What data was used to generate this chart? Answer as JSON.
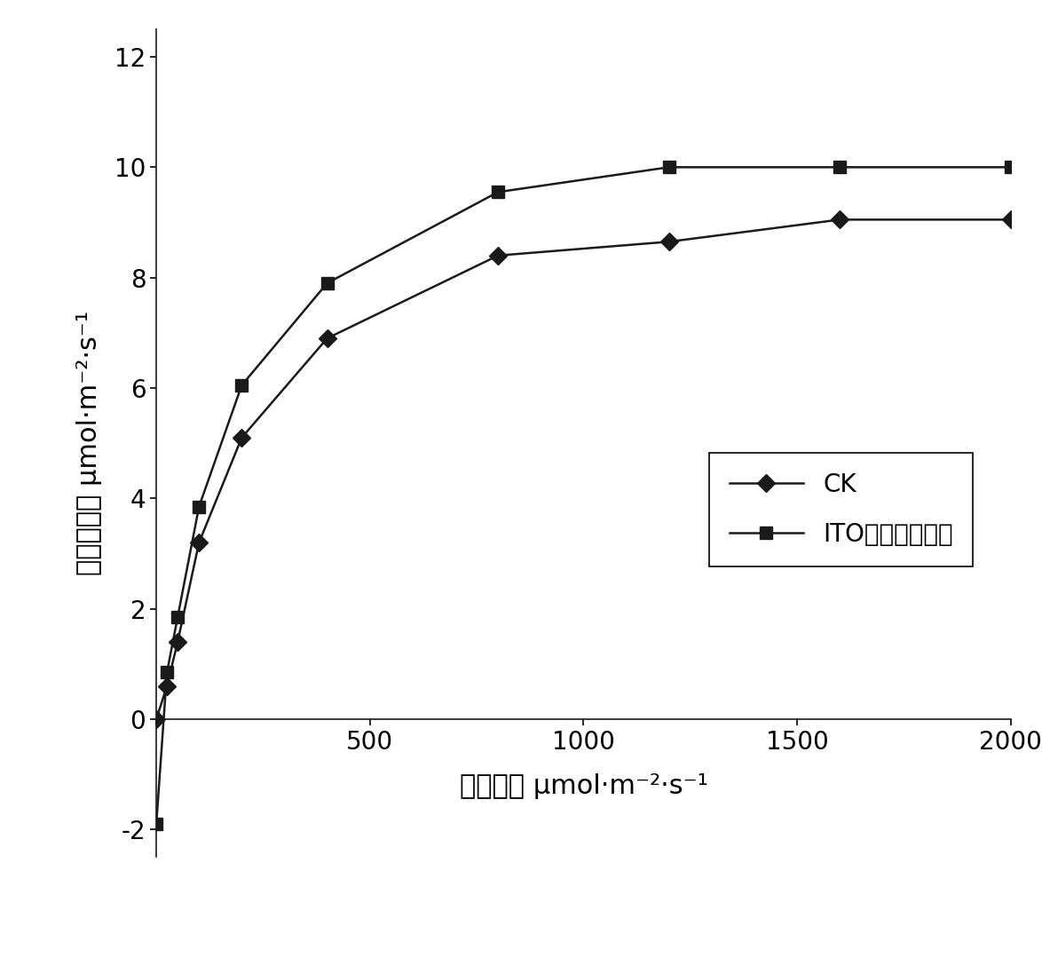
{
  "ck_x": [
    0,
    25,
    50,
    100,
    200,
    400,
    800,
    1200,
    1600,
    2000
  ],
  "ck_y": [
    0.0,
    0.6,
    1.4,
    3.2,
    5.1,
    6.9,
    8.4,
    8.65,
    9.05,
    9.05
  ],
  "ito_x": [
    0,
    25,
    50,
    100,
    200,
    400,
    800,
    1200,
    1600,
    2000
  ],
  "ito_y": [
    -1.9,
    0.85,
    1.85,
    3.85,
    6.05,
    7.9,
    9.55,
    10.0,
    10.0,
    10.0
  ],
  "xlabel": "光照强度 μmol·m⁻²·s⁻¹",
  "ylabel": "净光合速率 μmol·m⁻²·s⁻¹",
  "legend_ck": "CK",
  "legend_ito": "ITO纳米粒子溶胶",
  "xlim": [
    0,
    2000
  ],
  "ylim": [
    -2.5,
    12.5
  ],
  "xticks": [
    0,
    500,
    1000,
    1500,
    2000
  ],
  "yticks": [
    -2,
    0,
    2,
    4,
    6,
    8,
    10,
    12
  ],
  "line_color": "#1a1a1a",
  "bg_color": "#ffffff",
  "marker_ck": "D",
  "marker_ito": "s",
  "markersize": 10,
  "linewidth": 1.8
}
